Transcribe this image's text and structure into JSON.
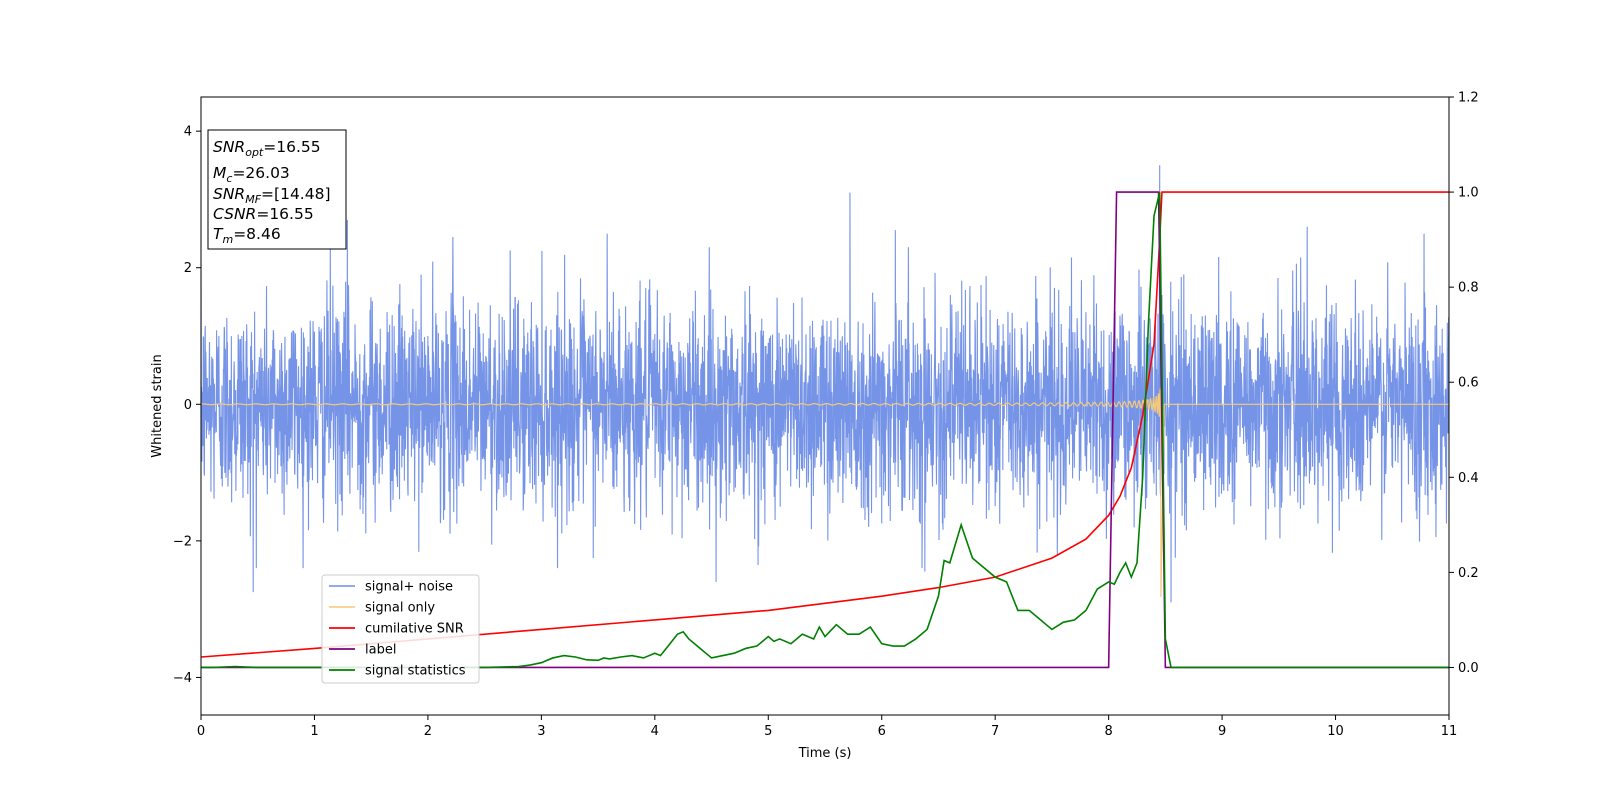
{
  "chart_data": {
    "type": "line",
    "xlabel": "Time (s)",
    "ylabel": "Whitened strain",
    "xlim": [
      0,
      11
    ],
    "ylim": [
      -4.55,
      4.5
    ],
    "y2lim": [
      -0.1,
      1.2
    ],
    "xticks": [
      "0",
      "1",
      "2",
      "3",
      "4",
      "5",
      "6",
      "7",
      "8",
      "9",
      "10",
      "11"
    ],
    "yticks": [
      "−4",
      "−2",
      "0",
      "2",
      "4"
    ],
    "y2ticks": [
      "0.0",
      "0.2",
      "0.4",
      "0.6",
      "0.8",
      "1.0",
      "1.2"
    ],
    "grid": false,
    "legend_position": "lower-left",
    "annotation": {
      "lines": [
        {
          "var": "SNR",
          "sub": "opt",
          "value": "=16.55"
        },
        {
          "var": "M",
          "sub": "c",
          "value": "=26.03"
        },
        {
          "var": "SNR",
          "sub": "MF",
          "value": "=[14.48]"
        },
        {
          "var": "CSNR",
          "sub": "",
          "value": "=16.55"
        },
        {
          "var": "T",
          "sub": "m",
          "value": "=8.46"
        }
      ]
    },
    "series": [
      {
        "name": "signal+ noise",
        "color": "#6f8ee6",
        "axis": "left",
        "description_values": {
          "std": 0.75,
          "peak_max": 3.5,
          "peak_min": -2.9
        },
        "spikes": [
          [
            0.46,
            -2.75
          ],
          [
            1.14,
            2.55
          ],
          [
            1.29,
            2.7
          ],
          [
            2.22,
            2.45
          ],
          [
            3.58,
            2.5
          ],
          [
            4.54,
            -2.6
          ],
          [
            5.72,
            3.1
          ],
          [
            6.12,
            2.55
          ],
          [
            6.38,
            -2.45
          ],
          [
            8.45,
            3.5
          ],
          [
            8.55,
            -2.9
          ],
          [
            9.75,
            2.6
          ],
          [
            10.78,
            2.5
          ]
        ]
      },
      {
        "name": "signal only",
        "color": "#f5c97a",
        "axis": "left",
        "merger_time": 8.46,
        "peak_amplitude": 2.6,
        "final_dip": -2.9
      },
      {
        "name": "cumilative SNR",
        "color": "#ff0000",
        "axis": "right",
        "x": [
          0,
          1,
          2,
          3,
          4,
          5,
          6,
          6.5,
          7,
          7.5,
          7.8,
          8.0,
          8.1,
          8.2,
          8.3,
          8.4,
          8.45,
          8.47,
          11
        ],
        "values": [
          0.022,
          0.04,
          0.06,
          0.08,
          0.1,
          0.12,
          0.15,
          0.168,
          0.19,
          0.23,
          0.27,
          0.32,
          0.36,
          0.42,
          0.53,
          0.68,
          0.9,
          1.0,
          1.0
        ]
      },
      {
        "name": "label",
        "color": "#800080",
        "axis": "right",
        "x": [
          0,
          8.0,
          8.07,
          8.44,
          8.5,
          11
        ],
        "values": [
          0,
          0,
          1.0,
          1.0,
          0,
          0
        ]
      },
      {
        "name": "signal statistics",
        "color": "#008000",
        "axis": "right",
        "x": [
          0,
          0.1,
          0.2,
          0.3,
          0.4,
          0.5,
          0.6,
          0.8,
          1.0,
          1.5,
          2.0,
          2.5,
          2.8,
          2.9,
          3.0,
          3.1,
          3.2,
          3.3,
          3.4,
          3.5,
          3.55,
          3.6,
          3.7,
          3.8,
          3.9,
          4.0,
          4.05,
          4.1,
          4.2,
          4.25,
          4.3,
          4.4,
          4.5,
          4.6,
          4.7,
          4.8,
          4.9,
          5.0,
          5.05,
          5.1,
          5.2,
          5.3,
          5.4,
          5.45,
          5.5,
          5.6,
          5.7,
          5.8,
          5.9,
          6.0,
          6.1,
          6.2,
          6.3,
          6.4,
          6.5,
          6.55,
          6.6,
          6.7,
          6.8,
          6.9,
          7.0,
          7.1,
          7.2,
          7.3,
          7.4,
          7.45,
          7.5,
          7.6,
          7.7,
          7.8,
          7.9,
          8.0,
          8.05,
          8.1,
          8.15,
          8.2,
          8.25,
          8.3,
          8.35,
          8.4,
          8.45,
          8.5,
          8.55,
          11
        ],
        "values": [
          0.0,
          0.0,
          0.001,
          0.002,
          0.001,
          0.0,
          0.0,
          0.0,
          0.0,
          0.0,
          0.0,
          0.0,
          0.002,
          0.005,
          0.01,
          0.02,
          0.025,
          0.022,
          0.016,
          0.015,
          0.02,
          0.018,
          0.022,
          0.025,
          0.02,
          0.03,
          0.025,
          0.04,
          0.07,
          0.075,
          0.06,
          0.04,
          0.02,
          0.025,
          0.03,
          0.04,
          0.045,
          0.065,
          0.055,
          0.06,
          0.05,
          0.07,
          0.06,
          0.085,
          0.065,
          0.09,
          0.07,
          0.07,
          0.085,
          0.05,
          0.045,
          0.045,
          0.06,
          0.08,
          0.15,
          0.225,
          0.22,
          0.3,
          0.23,
          0.21,
          0.19,
          0.18,
          0.12,
          0.12,
          0.1,
          0.09,
          0.08,
          0.095,
          0.1,
          0.12,
          0.165,
          0.18,
          0.175,
          0.2,
          0.22,
          0.19,
          0.22,
          0.4,
          0.72,
          0.95,
          1.0,
          0.06,
          0.0,
          0.0
        ]
      }
    ]
  }
}
